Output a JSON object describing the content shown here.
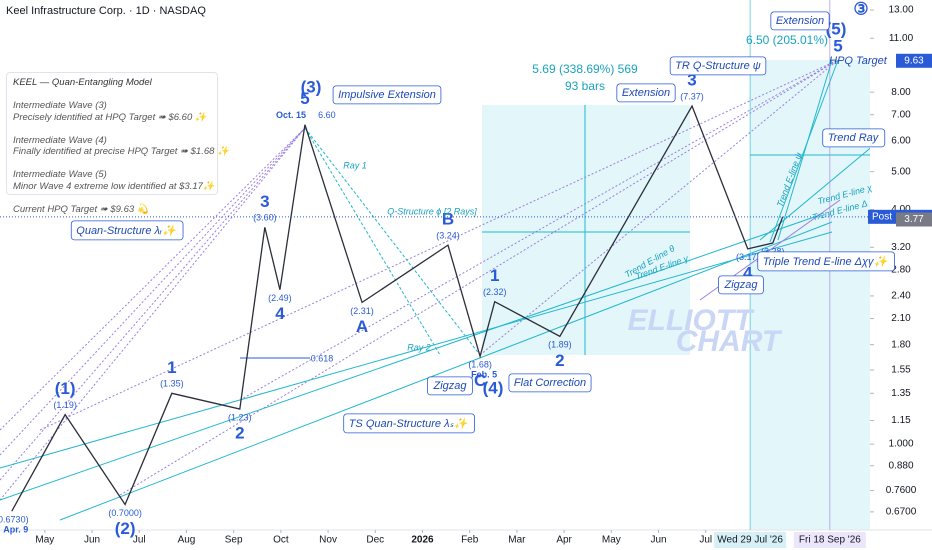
{
  "header": {
    "title": "Keel Infrastructure Corp. · 1D · NASDAQ"
  },
  "info_box": [
    "KEEL — Quan-Entangling Model",
    "Intermediate Wave (3)",
    "Precisely identified at HPQ Target ➠ $6.60 ✨",
    "Intermediate Wave (4)",
    "Finally identified at precise HPQ Target ➠ $1.68 ✨",
    "Intermediate Wave (5)",
    "Minor Wave 4 extreme low identified at $3.17✨",
    "Current HPQ Target ➠ $9.63 💫"
  ],
  "chart_data": {
    "type": "line",
    "log_scale": true,
    "xlim": [
      0.05,
      18.48
    ],
    "xticks": [
      {
        "value": 1,
        "label": "May"
      },
      {
        "value": 2,
        "label": "Jun"
      },
      {
        "value": 3,
        "label": "Jul"
      },
      {
        "value": 4,
        "label": "Aug"
      },
      {
        "value": 5,
        "label": "Sep"
      },
      {
        "value": 6,
        "label": "Oct"
      },
      {
        "value": 7,
        "label": "Nov"
      },
      {
        "value": 8,
        "label": "Dec"
      },
      {
        "value": 9,
        "label": "2026"
      },
      {
        "value": 10,
        "label": "Feb"
      },
      {
        "value": 11,
        "label": "Mar"
      },
      {
        "value": 12,
        "label": "Apr"
      },
      {
        "value": 13,
        "label": "May"
      },
      {
        "value": 14,
        "label": "Jun"
      },
      {
        "value": 15,
        "label": "Jul"
      }
    ],
    "x_markers": [
      {
        "value": 15.94,
        "label": "Wed 29 Jul '26"
      },
      {
        "value": 17.63,
        "label": "Fri 18 Sep '26"
      }
    ],
    "ylim": [
      0.602,
      13.79
    ],
    "yticks": [
      {
        "value": 13,
        "label": "13.00"
      },
      {
        "value": 11,
        "label": "11.00"
      },
      {
        "value": 8,
        "label": "8.00"
      },
      {
        "value": 7,
        "label": "7.00"
      },
      {
        "value": 6,
        "label": "6.00"
      },
      {
        "value": 5,
        "label": "5.00"
      },
      {
        "value": 4,
        "label": "4.00"
      },
      {
        "value": 3.2,
        "label": "3.20"
      },
      {
        "value": 2.8,
        "label": "2.80"
      },
      {
        "value": 2.4,
        "label": "2.40"
      },
      {
        "value": 2.1,
        "label": "2.10"
      },
      {
        "value": 1.8,
        "label": "1.80"
      },
      {
        "value": 1.55,
        "label": "1.55"
      },
      {
        "value": 1.35,
        "label": "1.35"
      },
      {
        "value": 1.15,
        "label": "1.15"
      },
      {
        "value": 1,
        "label": "1.000"
      },
      {
        "value": 0.88,
        "label": "0.880"
      },
      {
        "value": 0.76,
        "label": "0.7600"
      },
      {
        "value": 0.67,
        "label": "0.6700"
      }
    ],
    "series": [
      {
        "color": "#2b2f3a",
        "x": [
          0.3,
          1.43,
          2.7,
          3.69,
          5.13,
          5.66,
          5.98,
          6.51,
          7.72,
          9.54,
          10.22,
          10.53,
          11.91,
          14.71,
          15.89,
          16.42,
          16.63
        ],
        "values": [
          0.673,
          1.19,
          0.7,
          1.35,
          1.23,
          3.6,
          2.49,
          6.6,
          2.31,
          3.24,
          1.68,
          2.32,
          1.89,
          7.37,
          3.17,
          3.28,
          3.83
        ],
        "value_labels": [
          "(0.6730)",
          "(1.19)",
          "(0.7000)",
          "(1.35)",
          "(1.23)",
          "(3.60)",
          "(2.49)",
          "6.60",
          "(2.31)",
          "(3.24)",
          "(1.68)",
          "(2.32)",
          "(1.89)",
          "(7.37)",
          "(3.17)",
          "(3.28)",
          null
        ],
        "wave_labels": [
          null,
          "(1)",
          "(2)",
          "1",
          "2",
          "3",
          "4",
          "5",
          "A",
          "B",
          "C",
          "1",
          "2",
          "3",
          "4",
          null,
          null
        ],
        "date_labels": [
          "Apr. 9",
          null,
          null,
          null,
          null,
          null,
          null,
          "Oct. 15",
          null,
          null,
          "Feb. 5",
          null,
          null,
          null,
          null,
          null,
          null
        ]
      }
    ],
    "price_labels": [
      {
        "value": 9.63,
        "color": "#2a5bd7"
      },
      {
        "label": "Post",
        "value": 3.83,
        "color": "#2a5bd7"
      },
      {
        "value": 3.77,
        "color": "#787b86"
      }
    ],
    "annotations": [
      "(3)",
      "Impulsive Extension",
      "Ray 1",
      "Q-Structure ϕ [2 Rays]",
      "Quan-Structure λᵣ✨",
      "Ray 2",
      "0.618",
      "(4)",
      "Zigzag",
      "Flat Correction",
      "TS Quan-Structure λₛ✨",
      "5.69 (338.69%) 569",
      "93 bars",
      "Extension",
      "TR Q-Structure ψ",
      "6.50 (205.01%)",
      "5",
      "(5)",
      "Extension",
      "③",
      "HPQ Target",
      "Trend Ray",
      "Trend E-line ψ",
      "Trend E-line θ",
      "Trend E-line γ",
      "Trend E-line χ",
      "Trend E-line Δ",
      "Zigzag",
      "Triple Trend E-line Δχγ✨",
      "ELLIOTT",
      "CHART"
    ]
  }
}
